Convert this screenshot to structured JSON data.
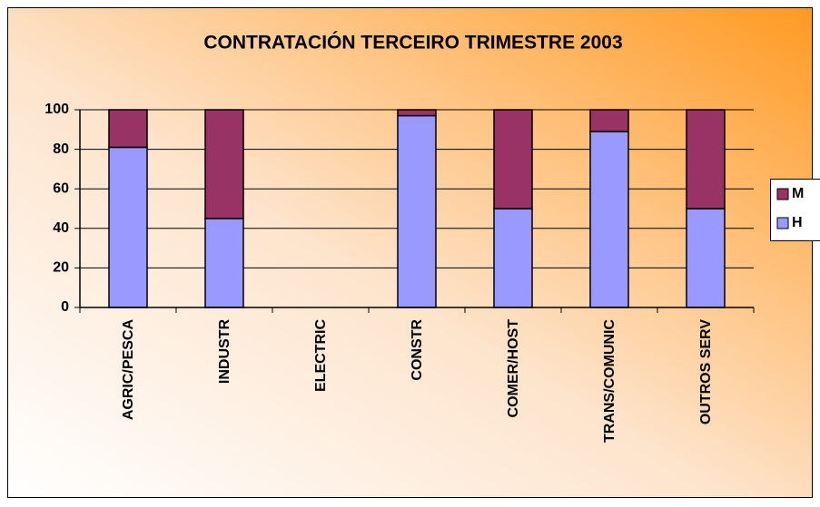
{
  "chart_data": {
    "type": "stacked_bar",
    "title": "CONTRATACIÓN TERCEIRO TRIMESTRE 2003",
    "categories": [
      "AGRIC/PESCA",
      "INDUSTR",
      "ELECTRIC",
      "CONSTR",
      "COMER/HOST",
      "TRANS/COMUNIC",
      "OUTROS SERV"
    ],
    "series": [
      {
        "name": "H",
        "color": "#9999ff",
        "values": [
          81,
          45,
          null,
          97,
          50,
          89,
          50
        ]
      },
      {
        "name": "M",
        "color": "#993366",
        "values": [
          19,
          55,
          null,
          3,
          50,
          11,
          50
        ]
      }
    ],
    "ylim": [
      0,
      100
    ],
    "yticks": [
      0,
      20,
      40,
      60,
      80,
      100
    ],
    "grid": true,
    "legend": "right"
  }
}
